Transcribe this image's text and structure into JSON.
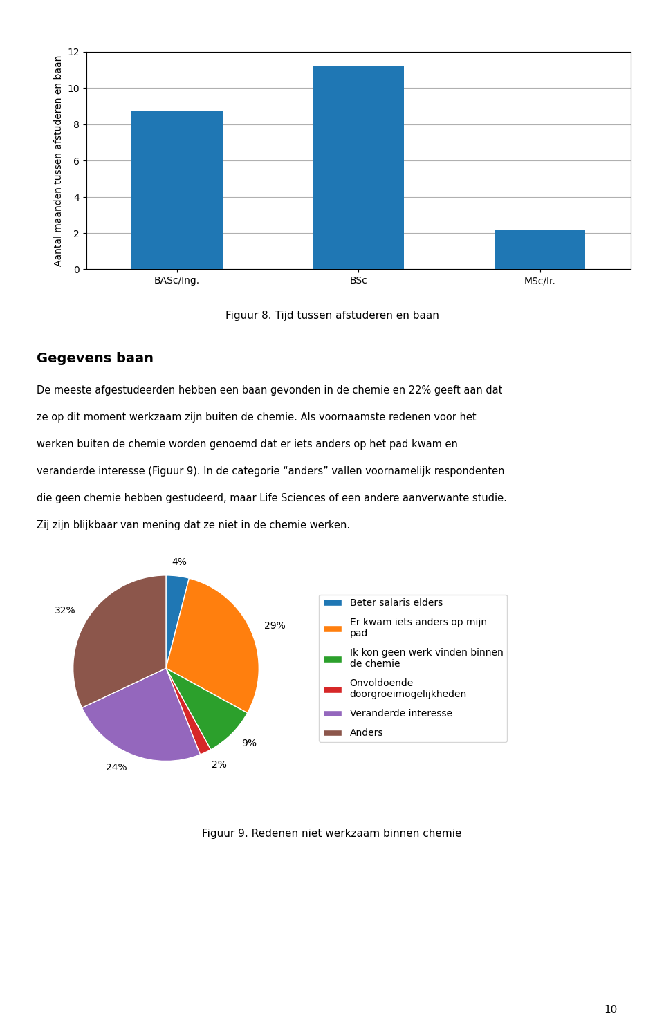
{
  "chart_data": [
    {
      "type": "bar",
      "title": "Figuur 8. Tijd tussen afstuderen en baan",
      "categories": [
        "BASc/Ing.",
        "BSc",
        "MSc/Ir."
      ],
      "values": [
        8.7,
        11.2,
        2.2
      ],
      "y_label": "Aantal maanden tussen afstuderen en baan",
      "ylim": [
        0,
        12
      ],
      "yticks": [
        0,
        2,
        4,
        6,
        8,
        10,
        12
      ],
      "grid": true
    },
    {
      "type": "pie",
      "title": "Figuur 9. Redenen niet werkzaam binnen chemie",
      "categories": [
        "Beter salaris elders",
        "Er kwam iets anders op mijn\npad",
        "Ik kon geen werk vinden binnen\nde chemie",
        "Onvoldoende\ndoorgroeimogelijkheden",
        "Veranderde interesse",
        "Anders"
      ],
      "values": [
        4,
        29,
        9,
        2,
        24,
        32
      ],
      "value_labels": [
        "4%",
        "29%",
        "9%",
        "2%",
        "24%",
        "32%"
      ],
      "data_labels": true,
      "legend": "right"
    }
  ],
  "heading": "Gegevens baan",
  "body": [
    "De meeste afgestudeerden hebben een baan gevonden in de chemie en 22% geeft aan dat",
    "ze op dit moment werkzaam zijn buiten de chemie. Als voornaamste redenen voor het",
    "werken buiten de chemie worden genoemd dat er iets anders op het pad kwam en",
    "veranderde interesse (Figuur 9). In de categorie “anders” vallen voornamelijk respondenten",
    "die geen chemie hebben gestudeerd, maar Life Sciences of een andere aanverwante studie.",
    "Zij zijn blijkbaar van mening dat ze niet in de chemie werken."
  ],
  "page_number": "10"
}
